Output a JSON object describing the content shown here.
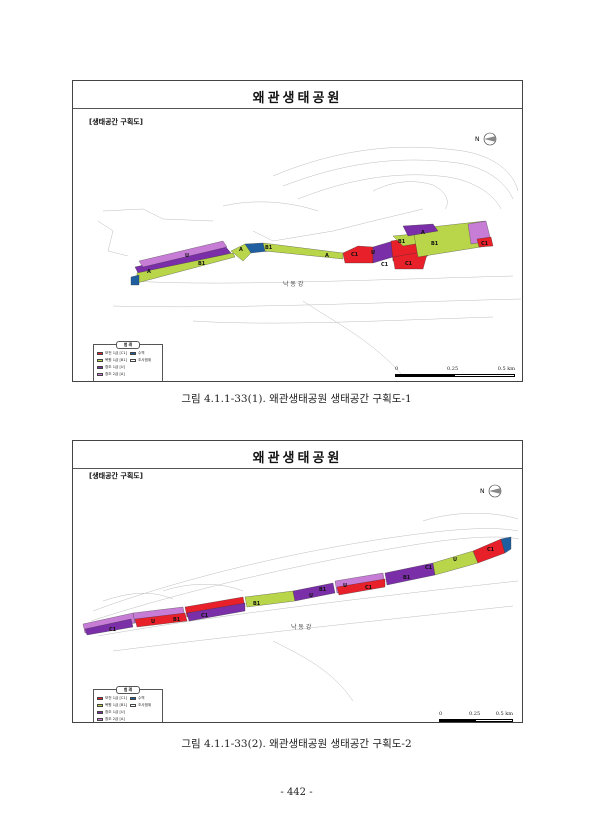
{
  "figures": [
    {
      "map_title": "왜관생태공원",
      "subtitle": "[생태공간 구획도]",
      "legend": {
        "title": "범 례",
        "items": [
          {
            "label": "보전 1급 [C1]",
            "color": "#e8202a"
          },
          {
            "label": "복원 1급 [B1]",
            "color": "#b9d64a"
          },
          {
            "label": "창조 1급 [U]",
            "color": "#7a2fa8"
          },
          {
            "label": "창조 2급 [A]",
            "color": "#c77dd6"
          },
          {
            "label": "수역",
            "color": "#1f5fa0"
          },
          {
            "label": "조사범위",
            "color": "#ffffff"
          }
        ]
      },
      "scale": {
        "ticks": [
          "0",
          "0.25",
          "0.5 km"
        ]
      },
      "river_label": "낙 동 강",
      "zone_labels": [
        "A",
        "U",
        "B1",
        "A",
        "B1",
        "A",
        "C1",
        "U",
        "C1",
        "C1",
        "B1",
        "A",
        "B1",
        "C1"
      ],
      "caption": "그림 4.1.1-33(1). 왜관생태공원 생태공간 구획도-1"
    },
    {
      "map_title": "왜관생태공원",
      "subtitle": "[생태공간 구획도]",
      "legend": {
        "title": "범 례",
        "items": [
          {
            "label": "보전 1급 [C1]",
            "color": "#e8202a"
          },
          {
            "label": "복원 1급 [B1]",
            "color": "#b9d64a"
          },
          {
            "label": "창조 1급 [U]",
            "color": "#7a2fa8"
          },
          {
            "label": "창조 2급 [A]",
            "color": "#c77dd6"
          },
          {
            "label": "수역",
            "color": "#1f5fa0"
          },
          {
            "label": "조사범위",
            "color": "#ffffff"
          }
        ]
      },
      "scale": {
        "ticks": [
          "0",
          "0.25",
          "0.5 km"
        ]
      },
      "river_label": "낙 동 강",
      "zone_labels": [
        "C1",
        "U",
        "B1",
        "C1",
        "B1",
        "U",
        "B1",
        "U",
        "C1",
        "B1",
        "C1",
        "U",
        "C1"
      ],
      "caption": "그림 4.1.1-33(2). 왜관생태공원 생태공간 구획도-2"
    }
  ],
  "page_number": "- 442 -"
}
